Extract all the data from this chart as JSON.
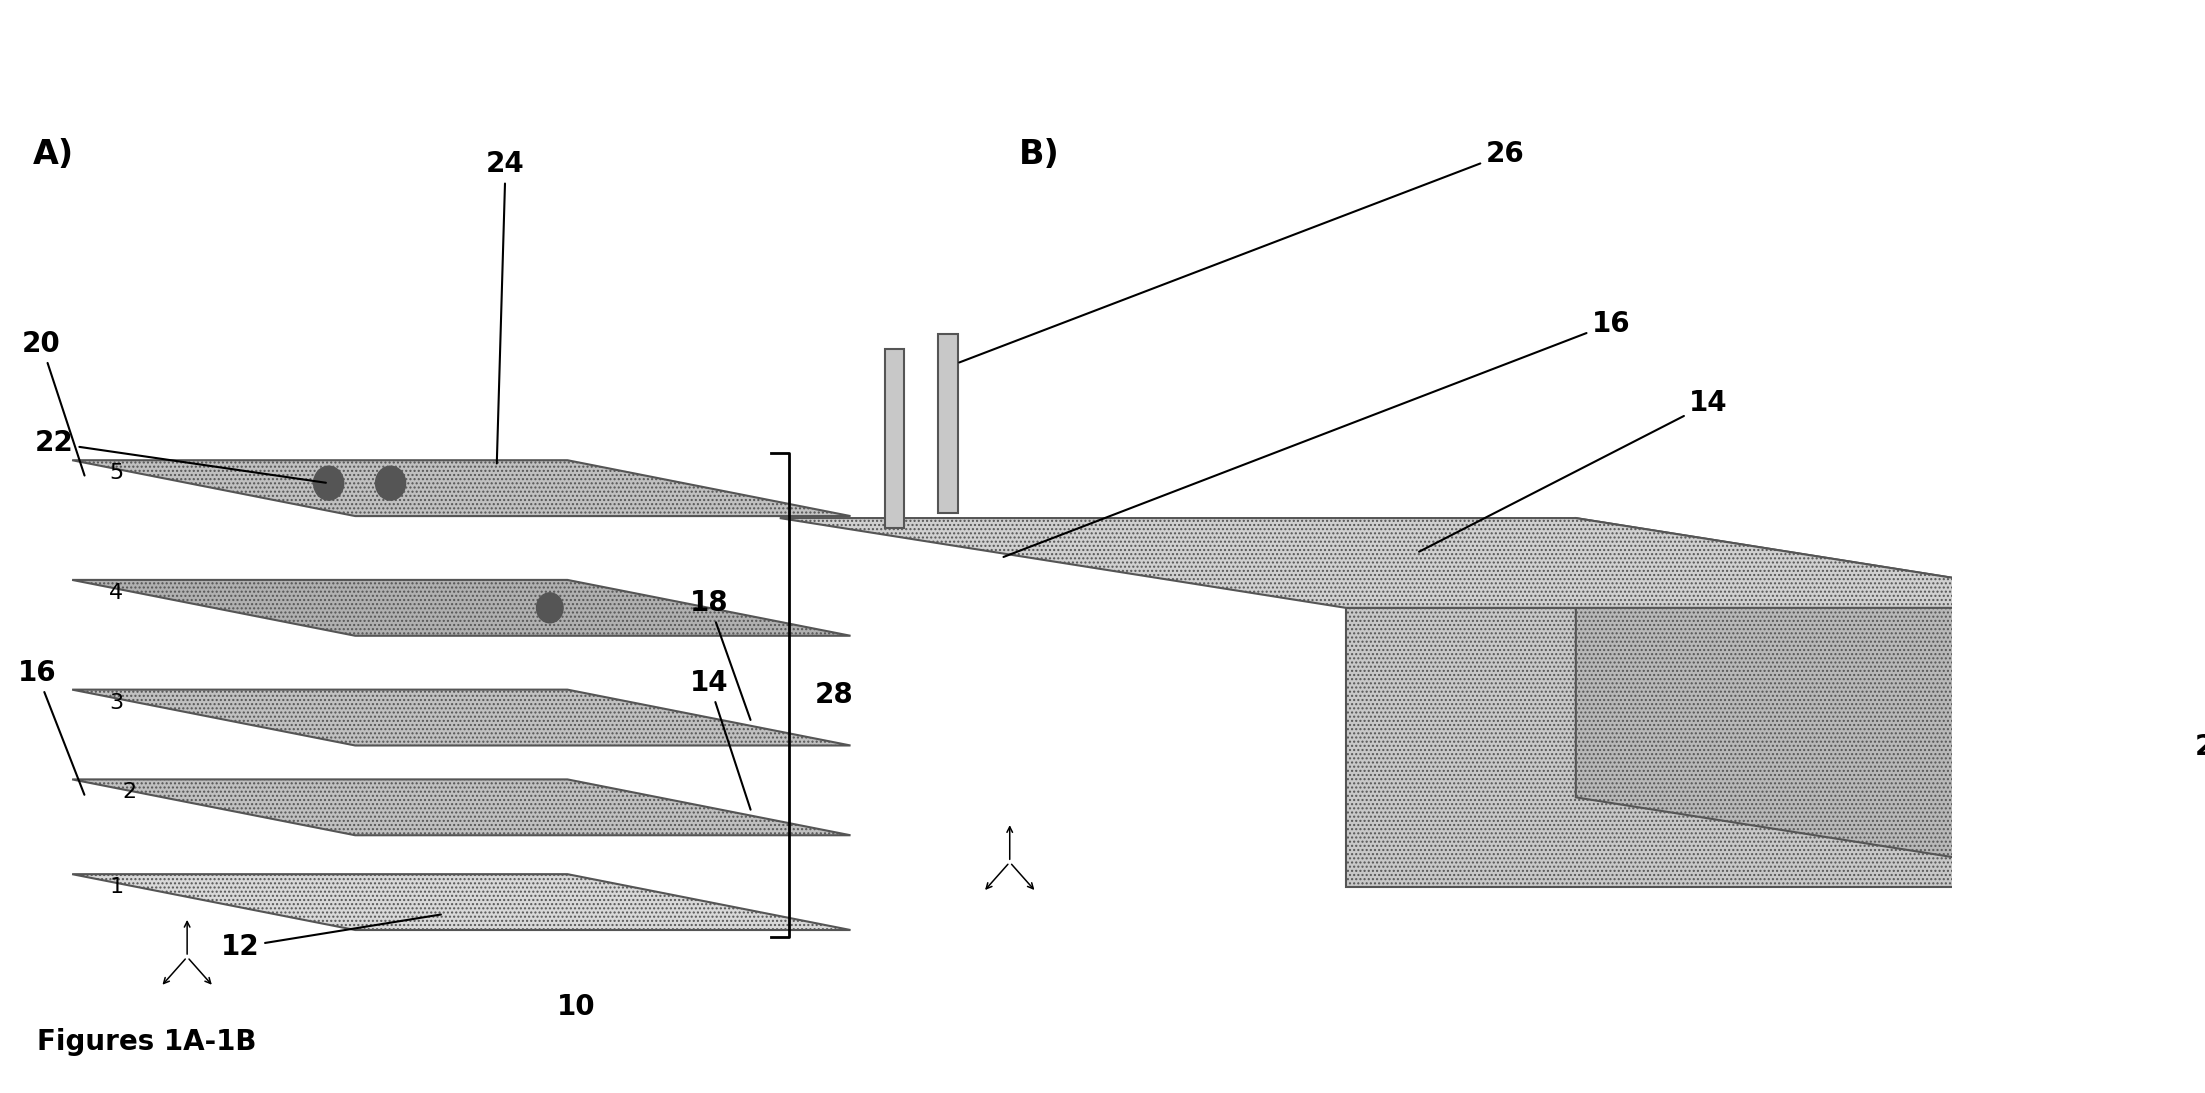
{
  "fig_width": 22.05,
  "fig_height": 10.93,
  "bg_color": "#ffffff",
  "label_fontsize": 16,
  "ref_fontsize": 20,
  "panel_label_fontsize": 24,
  "caption_fontsize": 20,
  "panel_A_label": "A)",
  "panel_B_label": "B)",
  "caption": "Figures 1A-1B",
  "layer_fill_dark": "#b0b0b0",
  "layer_fill_mid": "#c0c0c0",
  "layer_fill_light": "#d8d8d8",
  "layer_edge": "#555555",
  "hatch": "....",
  "dot_color": "#555555"
}
